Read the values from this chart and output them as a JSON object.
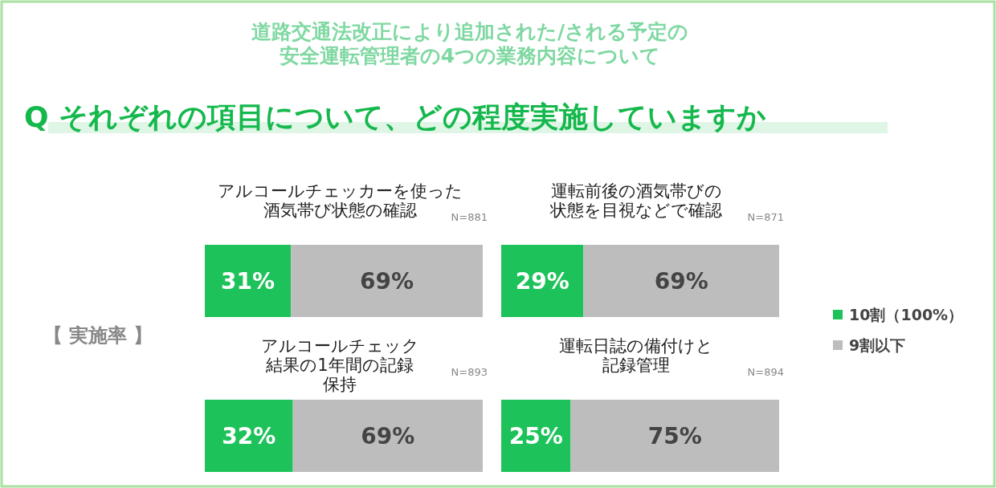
{
  "chart_data": [
    {
      "type": "other",
      "title": "道路交通法改正により追加された/される予定の安全運転管理者の4つの業務内容について",
      "subtitle": "Q それぞれの項目について、どの程度実施していますか",
      "annotations": [
        "【 実施率 】"
      ]
    },
    {
      "type": "bar",
      "orientation": "horizontal",
      "stacked": true,
      "title": "アルコールチェッカーを使った酒気帯び状態の確認",
      "annotations": [
        "N=881"
      ],
      "categories": [
        null
      ],
      "legend": "right",
      "series": [
        {
          "name": "10割（100%）",
          "color": "#1ec25a",
          "values": [
            31
          ],
          "value_labels": [
            "31%"
          ]
        },
        {
          "name": "9割以下",
          "color": "#bdbdbd",
          "values": [
            69
          ],
          "value_labels": [
            "69%"
          ]
        }
      ]
    },
    {
      "type": "bar",
      "orientation": "horizontal",
      "stacked": true,
      "title": "運転前後の酒気帯びの状態を目視などで確認",
      "annotations": [
        "N=871"
      ],
      "categories": [
        null
      ],
      "series": [
        {
          "color": "#1ec25a",
          "values": [
            29
          ],
          "value_labels": [
            "29%"
          ]
        },
        {
          "color": "#bdbdbd",
          "values": [
            69
          ],
          "value_labels": [
            "69%"
          ]
        }
      ]
    },
    {
      "type": "bar",
      "orientation": "horizontal",
      "stacked": true,
      "title": "アルコールチェック結果の1年間の記録保持",
      "annotations": [
        "N=893"
      ],
      "categories": [
        null
      ],
      "series": [
        {
          "color": "#1ec25a",
          "values": [
            32
          ],
          "value_labels": [
            "32%"
          ]
        },
        {
          "color": "#bdbdbd",
          "values": [
            69
          ],
          "value_labels": [
            "69%"
          ]
        }
      ]
    },
    {
      "type": "bar",
      "orientation": "horizontal",
      "stacked": true,
      "title": "運転日誌の備付けと記録管理",
      "annotations": [
        "N=894"
      ],
      "categories": [
        null
      ],
      "series": [
        {
          "color": "#1ec25a",
          "values": [
            25
          ],
          "value_labels": [
            "25%"
          ]
        },
        {
          "color": "#bdbdbd",
          "values": [
            75
          ],
          "value_labels": [
            "75%"
          ]
        }
      ]
    }
  ]
}
